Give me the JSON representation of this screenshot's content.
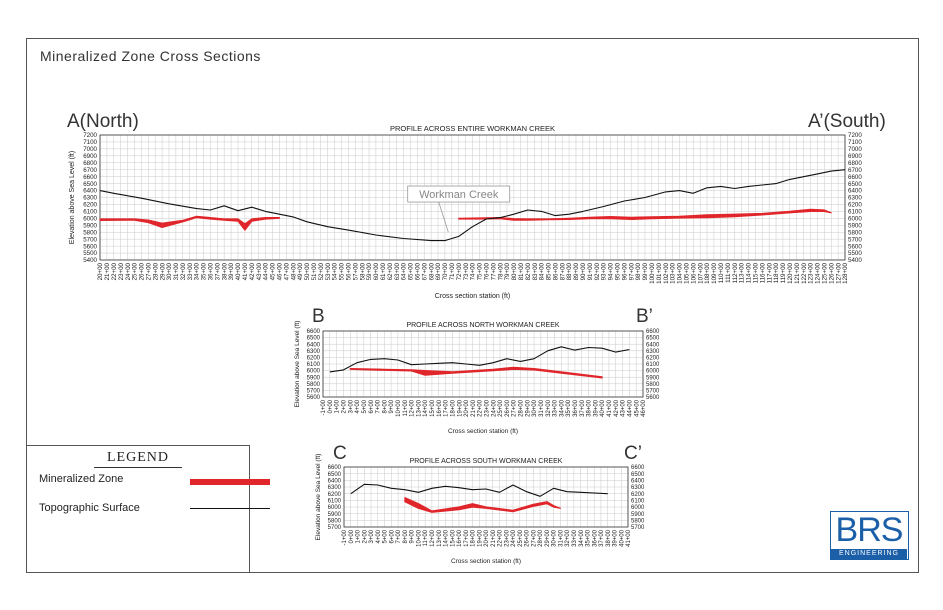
{
  "page": {
    "title": "Mineralized Zone Cross Sections"
  },
  "legend": {
    "title": "LEGEND",
    "items": [
      {
        "label": "Mineralized Zone",
        "color": "#e0262b"
      },
      {
        "label": "Topographic Surface",
        "color": "#111111"
      }
    ]
  },
  "logo": {
    "text": "BRS",
    "subtitle": "ENGINEERING",
    "color": "#1b5fa8"
  },
  "chart_data": [
    {
      "type": "line",
      "id": "A",
      "title": "PROFILE ACROSS ENTIRE WORKMAN CREEK",
      "left_label": "A(North)",
      "right_label": "A’(South)",
      "xlabel": "Cross section station (ft)",
      "ylabel": "Elevation above Sea Level (ft)",
      "ylim": [
        5400,
        7200
      ],
      "yticks": [
        7200,
        7100,
        7000,
        6900,
        6800,
        6700,
        6600,
        6500,
        6400,
        6300,
        6200,
        6100,
        6000,
        5900,
        5800,
        5700,
        5600,
        5500,
        5400
      ],
      "x_range": [
        20,
        128
      ],
      "xtick_start": 20,
      "xtick_end": 128,
      "xtick_step": 1,
      "grid": true,
      "annotation": {
        "text": "Workman Creek",
        "x": 72,
        "y": 6350,
        "target": [
          70.5,
          5800
        ]
      },
      "series": [
        {
          "name": "Topographic Surface",
          "color": "#111111",
          "x": [
            20,
            22,
            26,
            30,
            34,
            36,
            38,
            40,
            42,
            44,
            46,
            48,
            50,
            53,
            56,
            60,
            64,
            68,
            70,
            72,
            74,
            76,
            78,
            80,
            82,
            84,
            86,
            88,
            90,
            93,
            96,
            99,
            102,
            104,
            106,
            108,
            110,
            112,
            114,
            116,
            118,
            120,
            122,
            124,
            126,
            128
          ],
          "y": [
            6400,
            6360,
            6290,
            6210,
            6140,
            6120,
            6180,
            6110,
            6160,
            6100,
            6060,
            6020,
            5950,
            5880,
            5830,
            5760,
            5710,
            5680,
            5680,
            5740,
            5880,
            5990,
            6010,
            6060,
            6120,
            6100,
            6040,
            6060,
            6100,
            6170,
            6250,
            6300,
            6380,
            6400,
            6360,
            6440,
            6460,
            6430,
            6460,
            6480,
            6500,
            6560,
            6600,
            6640,
            6680,
            6700
          ]
        }
      ],
      "zones": [
        {
          "top": [
            [
              20,
              5990
            ],
            [
              25,
              5990
            ],
            [
              27,
              5975
            ],
            [
              29,
              5930
            ],
            [
              32,
              5970
            ],
            [
              34,
              6030
            ],
            [
              36,
              6010
            ],
            [
              38,
              5990
            ],
            [
              40,
              5990
            ],
            [
              41,
              5920
            ],
            [
              42,
              5990
            ],
            [
              44,
              6010
            ],
            [
              46,
              6010
            ]
          ],
          "bottom": [
            [
              20,
              5970
            ],
            [
              25,
              5975
            ],
            [
              27,
              5940
            ],
            [
              29,
              5870
            ],
            [
              32,
              5950
            ],
            [
              34,
              6010
            ],
            [
              36,
              5990
            ],
            [
              38,
              5975
            ],
            [
              40,
              5960
            ],
            [
              41,
              5830
            ],
            [
              42,
              5960
            ],
            [
              44,
              5990
            ],
            [
              46,
              6000
            ]
          ]
        },
        {
          "top": [
            [
              72,
              6000
            ],
            [
              75,
              6005
            ],
            [
              78,
              6010
            ],
            [
              80,
              5995
            ],
            [
              82,
              5990
            ],
            [
              85,
              5990
            ],
            [
              88,
              6000
            ],
            [
              91,
              6015
            ],
            [
              94,
              6025
            ],
            [
              97,
              6015
            ],
            [
              100,
              6020
            ],
            [
              104,
              6030
            ],
            [
              108,
              6050
            ],
            [
              112,
              6060
            ],
            [
              116,
              6070
            ],
            [
              120,
              6100
            ],
            [
              123,
              6130
            ],
            [
              125,
              6120
            ],
            [
              126,
              6080
            ]
          ],
          "bottom": [
            [
              72,
              5990
            ],
            [
              75,
              5990
            ],
            [
              78,
              5995
            ],
            [
              80,
              5975
            ],
            [
              82,
              5975
            ],
            [
              85,
              5980
            ],
            [
              88,
              5985
            ],
            [
              91,
              5995
            ],
            [
              94,
              5995
            ],
            [
              97,
              5985
            ],
            [
              100,
              5995
            ],
            [
              104,
              6005
            ],
            [
              108,
              6010
            ],
            [
              112,
              6025
            ],
            [
              116,
              6050
            ],
            [
              120,
              6080
            ],
            [
              123,
              6100
            ],
            [
              125,
              6100
            ],
            [
              126,
              6080
            ]
          ]
        }
      ]
    },
    {
      "type": "line",
      "id": "B",
      "title": "PROFILE ACROSS NORTH WORKMAN CREEK",
      "left_label": "B",
      "right_label": "B’",
      "xlabel": "Cross section station (ft)",
      "ylabel": "Elevation above Sea Level (ft)",
      "ylim": [
        5600,
        6600
      ],
      "yticks": [
        6600,
        6500,
        6400,
        6300,
        6200,
        6100,
        6000,
        5900,
        5800,
        5700,
        5600
      ],
      "x_range": [
        -1,
        46
      ],
      "xtick_start": -1,
      "xtick_end": 46,
      "xtick_step": 1,
      "grid": true,
      "series": [
        {
          "name": "Topographic Surface",
          "color": "#111111",
          "x": [
            0,
            2,
            4,
            6,
            8,
            10,
            12,
            14,
            16,
            18,
            20,
            22,
            24,
            26,
            28,
            30,
            32,
            34,
            36,
            38,
            40,
            42,
            44
          ],
          "y": [
            5980,
            6010,
            6120,
            6170,
            6180,
            6160,
            6090,
            6100,
            6110,
            6120,
            6100,
            6080,
            6120,
            6180,
            6140,
            6180,
            6300,
            6360,
            6310,
            6350,
            6340,
            6280,
            6320
          ]
        }
      ],
      "zones": [
        {
          "top": [
            [
              3,
              6030
            ],
            [
              8,
              6020
            ],
            [
              12,
              6010
            ],
            [
              14,
              6000
            ],
            [
              18,
              5980
            ],
            [
              24,
              6020
            ],
            [
              27,
              6050
            ],
            [
              30,
              6030
            ],
            [
              34,
              5980
            ],
            [
              40,
              5905
            ]
          ],
          "bottom": [
            [
              3,
              6020
            ],
            [
              8,
              6005
            ],
            [
              12,
              5995
            ],
            [
              14,
              5930
            ],
            [
              18,
              5960
            ],
            [
              24,
              6000
            ],
            [
              27,
              6020
            ],
            [
              30,
              6010
            ],
            [
              34,
              5960
            ],
            [
              40,
              5890
            ]
          ]
        }
      ]
    },
    {
      "type": "line",
      "id": "C",
      "title": "PROFILE ACROSS SOUTH WORKMAN CREEK",
      "left_label": "C",
      "right_label": "C’",
      "xlabel": "Cross section station (ft)",
      "ylabel": "Elevation above Sea Level (ft)",
      "ylim": [
        5700,
        6600
      ],
      "yticks": [
        6600,
        6500,
        6400,
        6300,
        6200,
        6100,
        6000,
        5900,
        5800,
        5700
      ],
      "x_range": [
        -1,
        41
      ],
      "xtick_start": -1,
      "xtick_end": 41,
      "xtick_step": 1,
      "grid": true,
      "series": [
        {
          "name": "Topographic Surface",
          "color": "#111111",
          "x": [
            0,
            2,
            4,
            6,
            8,
            10,
            12,
            14,
            16,
            18,
            20,
            22,
            24,
            26,
            28,
            30,
            32,
            34,
            36,
            38
          ],
          "y": [
            6200,
            6340,
            6330,
            6280,
            6260,
            6220,
            6280,
            6310,
            6290,
            6260,
            6270,
            6220,
            6330,
            6230,
            6160,
            6280,
            6230,
            6220,
            6210,
            6200
          ]
        }
      ],
      "zones": [
        {
          "top": [
            [
              8,
              6140
            ],
            [
              10,
              6050
            ],
            [
              12,
              5940
            ],
            [
              16,
              6000
            ],
            [
              18,
              6050
            ],
            [
              20,
              6000
            ],
            [
              24,
              5950
            ],
            [
              27,
              6040
            ],
            [
              29,
              6080
            ],
            [
              30,
              6020
            ],
            [
              31,
              5980
            ]
          ],
          "bottom": [
            [
              8,
              6080
            ],
            [
              10,
              5980
            ],
            [
              12,
              5920
            ],
            [
              16,
              5960
            ],
            [
              18,
              6000
            ],
            [
              20,
              5980
            ],
            [
              24,
              5930
            ],
            [
              27,
              6010
            ],
            [
              29,
              6050
            ],
            [
              30,
              6000
            ],
            [
              31,
              5980
            ]
          ]
        }
      ]
    }
  ]
}
